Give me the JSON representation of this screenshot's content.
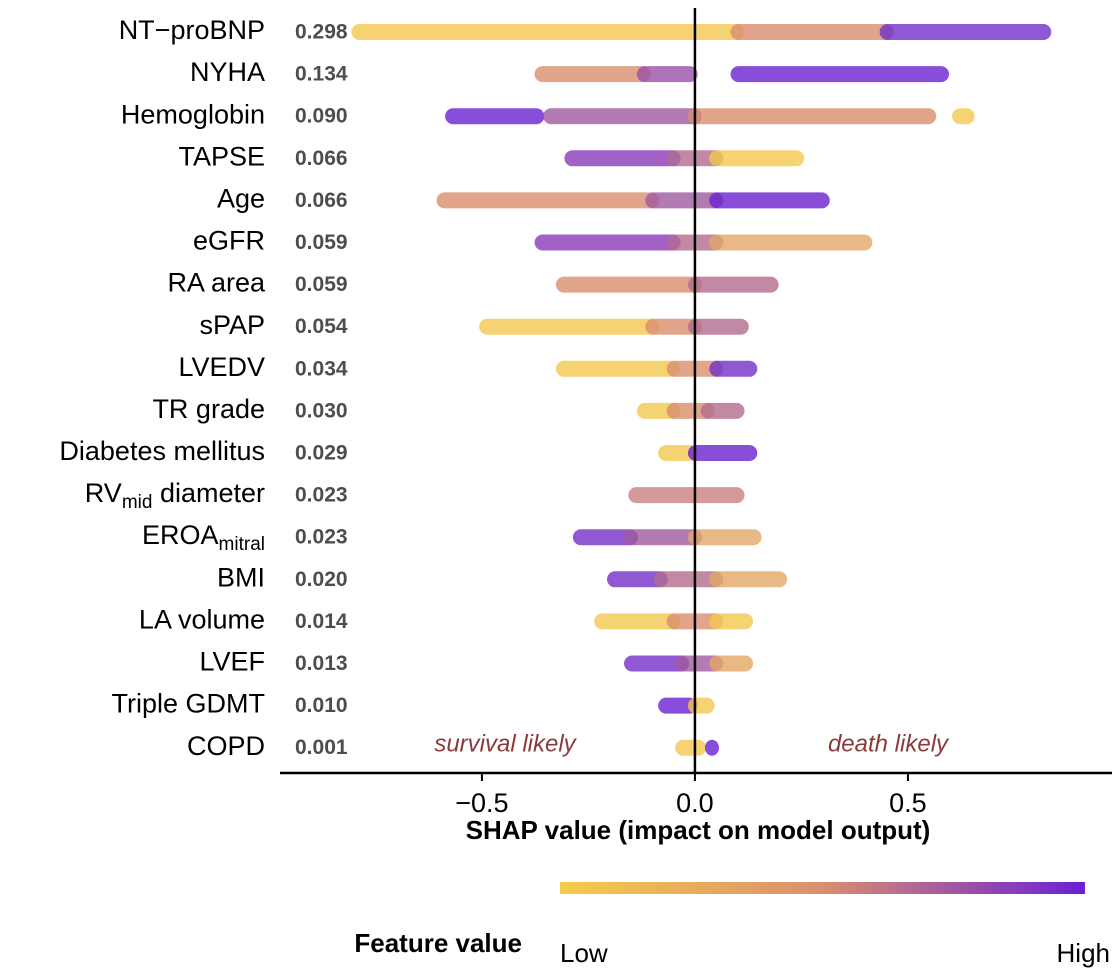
{
  "chart_data": {
    "type": "beeswarm",
    "x_label": "SHAP value (impact on model output)",
    "categories": [
      "NT−proBNP",
      "NYHA",
      "Hemoglobin",
      "TAPSE",
      "Age",
      "eGFR",
      "RA area",
      "sPAP",
      "LVEDV",
      "TR grade",
      "Diabetes mellitus",
      {
        "main": "RV",
        "sub": "mid",
        "rest": " diameter"
      },
      {
        "main": "EROA",
        "sub": "mitral"
      },
      "BMI",
      "LA volume",
      "LVEF",
      "Triple GDMT",
      "COPD"
    ],
    "values": [
      0.298,
      0.134,
      0.09,
      0.066,
      0.066,
      0.059,
      0.059,
      0.054,
      0.034,
      0.03,
      0.029,
      0.023,
      0.023,
      0.02,
      0.014,
      0.013,
      0.01,
      0.001
    ],
    "value_labels": [
      "0.298",
      "0.134",
      "0.090",
      "0.066",
      "0.066",
      "0.059",
      "0.059",
      "0.054",
      "0.034",
      "0.030",
      "0.029",
      "0.023",
      "0.023",
      "0.020",
      "0.014",
      "0.013",
      "0.010",
      "0.001"
    ],
    "segments": [
      [
        {
          "x": [
            -0.79,
            0.1
          ],
          "color": "#f3c74f"
        },
        {
          "x": [
            0.1,
            0.45
          ],
          "color": "#d98f6f"
        },
        {
          "x": [
            0.45,
            0.82
          ],
          "color": "#7430c8"
        }
      ],
      [
        {
          "x": [
            -0.36,
            -0.12
          ],
          "color": "#d98f6f"
        },
        {
          "x": [
            -0.12,
            -0.01
          ],
          "color": "#9a50a8"
        },
        {
          "x": [
            0.1,
            0.58
          ],
          "color": "#6a20d0"
        }
      ],
      [
        {
          "x": [
            -0.57,
            -0.37
          ],
          "color": "#6a20d0"
        },
        {
          "x": [
            -0.34,
            0.0
          ],
          "color": "#a05aa0"
        },
        {
          "x": [
            0.0,
            0.55
          ],
          "color": "#d98f6f"
        },
        {
          "x": [
            0.62,
            0.64
          ],
          "color": "#f3c74f"
        }
      ],
      [
        {
          "x": [
            -0.29,
            -0.05
          ],
          "color": "#8a3ab8"
        },
        {
          "x": [
            -0.05,
            0.05
          ],
          "color": "#b36c8e"
        },
        {
          "x": [
            0.05,
            0.24
          ],
          "color": "#f3c74f"
        }
      ],
      [
        {
          "x": [
            -0.59,
            -0.1
          ],
          "color": "#d98f6f"
        },
        {
          "x": [
            -0.1,
            0.05
          ],
          "color": "#a05aa0"
        },
        {
          "x": [
            0.05,
            0.3
          ],
          "color": "#6a20d0"
        }
      ],
      [
        {
          "x": [
            -0.36,
            -0.05
          ],
          "color": "#8a3ab8"
        },
        {
          "x": [
            -0.05,
            0.05
          ],
          "color": "#b36c8e"
        },
        {
          "x": [
            0.05,
            0.4
          ],
          "color": "#e2a865"
        }
      ],
      [
        {
          "x": [
            -0.31,
            0.0
          ],
          "color": "#d98f6f"
        },
        {
          "x": [
            0.0,
            0.18
          ],
          "color": "#b36c8e"
        }
      ],
      [
        {
          "x": [
            -0.49,
            -0.1
          ],
          "color": "#f3c74f"
        },
        {
          "x": [
            -0.1,
            0.0
          ],
          "color": "#d98f6f"
        },
        {
          "x": [
            0.0,
            0.11
          ],
          "color": "#b36c8e"
        }
      ],
      [
        {
          "x": [
            -0.31,
            -0.05
          ],
          "color": "#f3c74f"
        },
        {
          "x": [
            -0.05,
            0.05
          ],
          "color": "#d98f6f"
        },
        {
          "x": [
            0.05,
            0.13
          ],
          "color": "#7430c8"
        }
      ],
      [
        {
          "x": [
            -0.12,
            -0.05
          ],
          "color": "#f3c74f"
        },
        {
          "x": [
            -0.05,
            0.03
          ],
          "color": "#d98f6f"
        },
        {
          "x": [
            0.03,
            0.1
          ],
          "color": "#b36c8e"
        }
      ],
      [
        {
          "x": [
            -0.07,
            -0.01
          ],
          "color": "#f3c74f"
        },
        {
          "x": [
            0.0,
            0.13
          ],
          "color": "#6a20d0"
        }
      ],
      [
        {
          "x": [
            -0.14,
            0.1
          ],
          "color": "#c98080"
        }
      ],
      [
        {
          "x": [
            -0.27,
            -0.15
          ],
          "color": "#7430c8"
        },
        {
          "x": [
            -0.15,
            0.0
          ],
          "color": "#a05aa0"
        },
        {
          "x": [
            0.0,
            0.14
          ],
          "color": "#e2a865"
        }
      ],
      [
        {
          "x": [
            -0.19,
            -0.08
          ],
          "color": "#7430c8"
        },
        {
          "x": [
            -0.08,
            0.05
          ],
          "color": "#b36c8e"
        },
        {
          "x": [
            0.05,
            0.2
          ],
          "color": "#e2a865"
        }
      ],
      [
        {
          "x": [
            -0.22,
            -0.05
          ],
          "color": "#f3c74f"
        },
        {
          "x": [
            -0.05,
            0.05
          ],
          "color": "#d98f6f"
        },
        {
          "x": [
            0.05,
            0.12
          ],
          "color": "#f3c74f"
        }
      ],
      [
        {
          "x": [
            -0.15,
            -0.03
          ],
          "color": "#7430c8"
        },
        {
          "x": [
            -0.03,
            0.05
          ],
          "color": "#a05aa0"
        },
        {
          "x": [
            0.05,
            0.12
          ],
          "color": "#e2a865"
        }
      ],
      [
        {
          "x": [
            -0.07,
            -0.01
          ],
          "color": "#6a20d0"
        },
        {
          "x": [
            0.0,
            0.03
          ],
          "color": "#f3c74f"
        }
      ],
      [
        {
          "x": [
            -0.03,
            0.01
          ],
          "color": "#f3c74f"
        },
        {
          "x": [
            0.04,
            0.04
          ],
          "color": "#6a20d0"
        }
      ]
    ],
    "xlim": [
      -0.974,
      0.979
    ],
    "xticks": [
      {
        "value": -0.5,
        "label": "−0.5"
      },
      {
        "value": 0.0,
        "label": "0.0"
      },
      {
        "value": 0.5,
        "label": "0.5"
      }
    ],
    "annotations": [
      "survival likely",
      "death likely"
    ],
    "colorbar": {
      "title": "Feature value",
      "low": "Low",
      "high": "High",
      "colors": [
        "#f5cc4a",
        "#d98f6f",
        "#6a1fd6"
      ]
    }
  }
}
